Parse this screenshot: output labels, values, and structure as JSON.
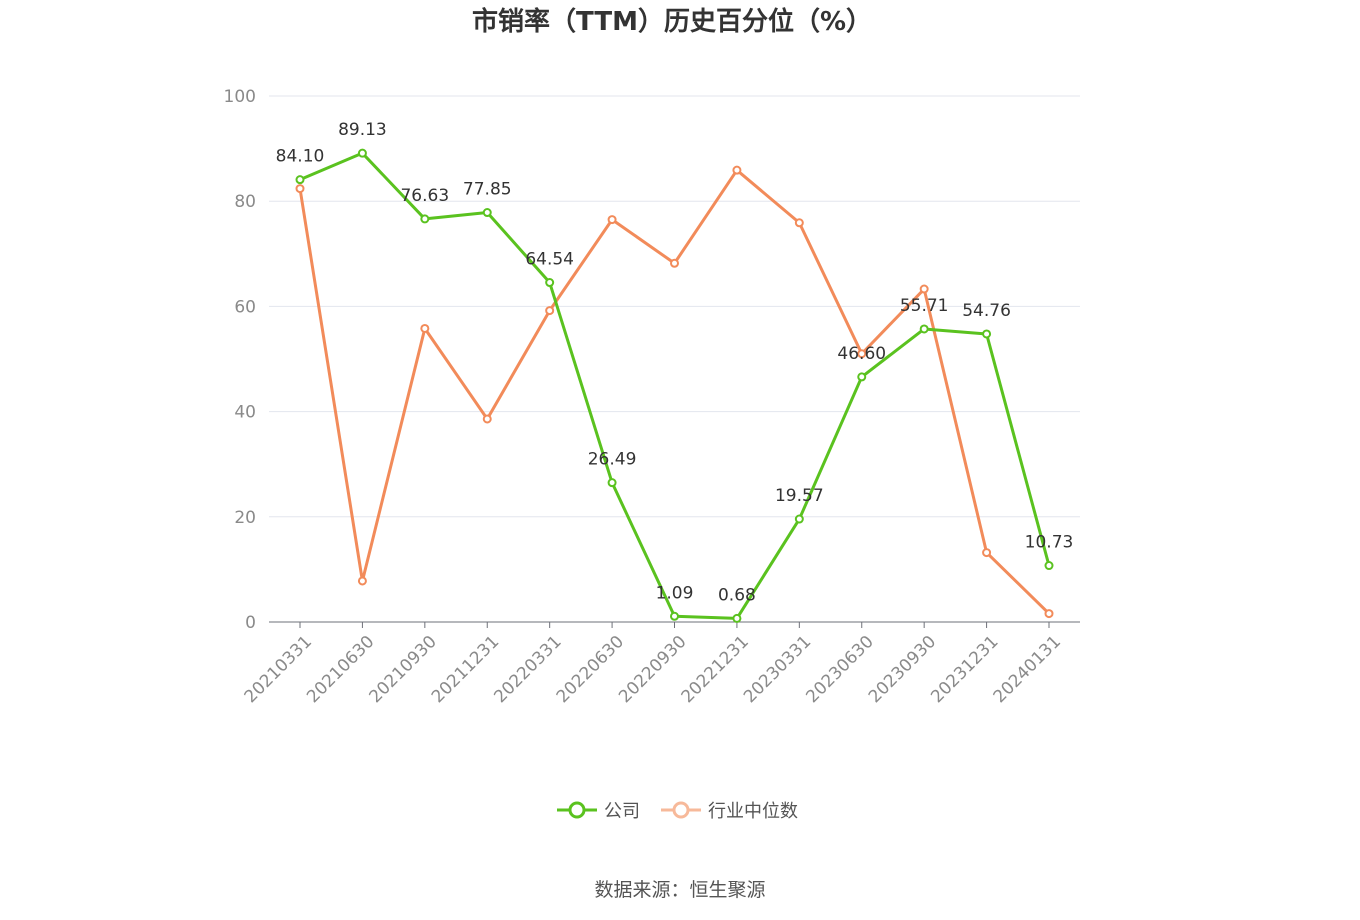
{
  "chart_data": {
    "type": "line",
    "title": "市销率（TTM）历史百分位（%）",
    "categories": [
      "20210331",
      "20210630",
      "20210930",
      "20211231",
      "20220331",
      "20220630",
      "20220930",
      "20221231",
      "20230331",
      "20230630",
      "20230930",
      "20231231",
      "20240131"
    ],
    "ylim": [
      0,
      100
    ],
    "yticks": [
      0,
      20,
      40,
      60,
      80,
      100
    ],
    "grid": true,
    "legend_position": "bottom",
    "series": [
      {
        "name": "公司",
        "color": "#5ac21f",
        "values": [
          84.1,
          89.13,
          76.63,
          77.85,
          64.54,
          26.49,
          1.09,
          0.68,
          19.57,
          46.6,
          55.71,
          54.76,
          10.73
        ],
        "labels": [
          "84.10",
          "89.13",
          "76.63",
          "77.85",
          "64.54",
          "26.49",
          "1.09",
          "0.68",
          "19.57",
          "46.60",
          "55.71",
          "54.76",
          "10.73"
        ]
      },
      {
        "name": "行业中位数",
        "color": "#f28b5a",
        "values": [
          82.4,
          7.8,
          55.8,
          38.6,
          59.2,
          76.5,
          68.2,
          85.9,
          75.9,
          51.0,
          63.3,
          13.2,
          1.6
        ]
      }
    ]
  },
  "source": "数据来源：恒生聚源"
}
